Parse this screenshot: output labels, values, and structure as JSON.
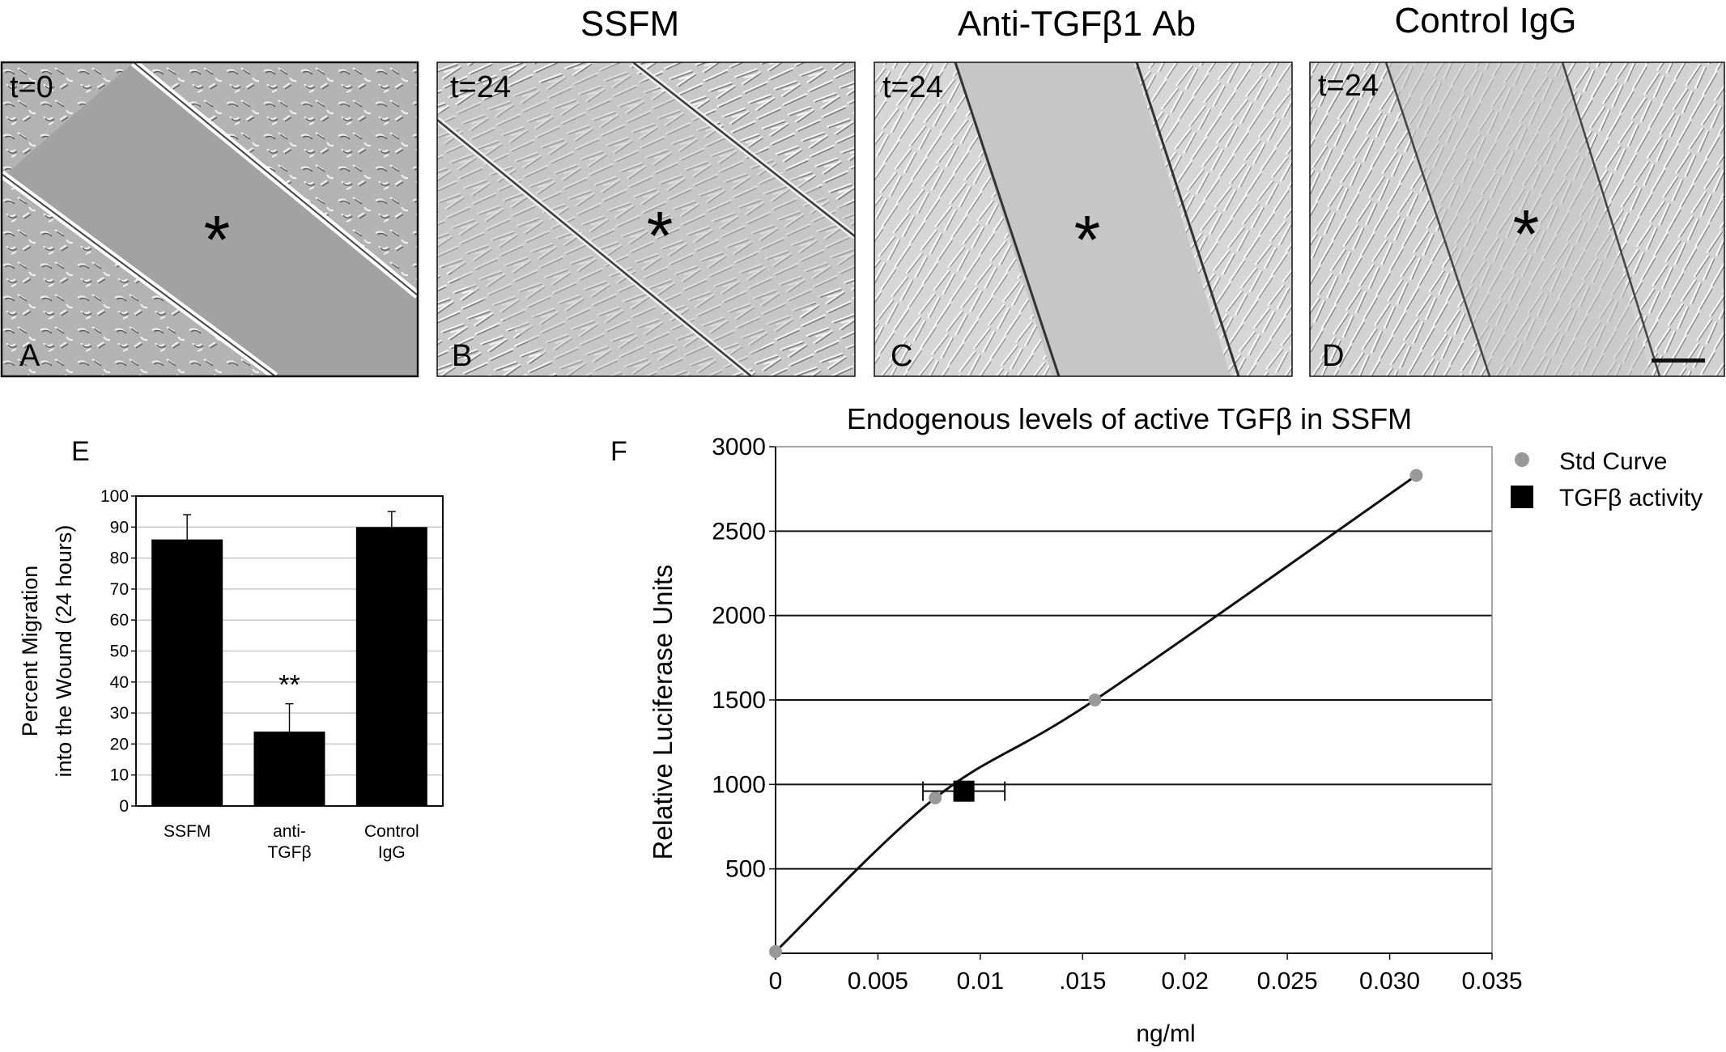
{
  "figure": {
    "column_titles": [
      "SSFM",
      "Anti-TGFβ1 Ab",
      "Control IgG"
    ],
    "panels": [
      {
        "letter": "A",
        "time_label": "t=0",
        "wound_marker": "*"
      },
      {
        "letter": "B",
        "time_label": "t=24",
        "wound_marker": "*"
      },
      {
        "letter": "C",
        "time_label": "t=24",
        "wound_marker": "*"
      },
      {
        "letter": "D",
        "time_label": "t=24",
        "wound_marker": "*"
      }
    ],
    "panel_e_letter": "E",
    "panel_f_letter": "F"
  },
  "chart_data": [
    {
      "type": "bar",
      "panel": "E",
      "title": "",
      "ylabel_lines": [
        "Percent Migration",
        "into the Wound (24 hours)"
      ],
      "ylim": [
        0,
        100
      ],
      "yticks": [
        "0",
        "10",
        "20",
        "30",
        "40",
        "50",
        "60",
        "70",
        "80",
        "90",
        "100"
      ],
      "categories": [
        [
          "SSFM"
        ],
        [
          "anti-",
          "TGFβ"
        ],
        [
          "Control",
          "IgG"
        ]
      ],
      "values": [
        86,
        24,
        90
      ],
      "errors": [
        8,
        9,
        5
      ],
      "annotations": [
        {
          "category_index": 1,
          "text": "**"
        }
      ],
      "bar_color": "#000000",
      "grid": true
    },
    {
      "type": "line",
      "panel": "F",
      "title": "Endogenous levels of active TGFβ in SSFM",
      "xlabel": "ng/ml",
      "ylabel": "Relative Luciferase Units",
      "xlim": [
        0,
        0.035
      ],
      "ylim": [
        0,
        3000
      ],
      "xticks": [
        {
          "value": 0,
          "label": "0"
        },
        {
          "value": 0.005,
          "label": "0.005"
        },
        {
          "value": 0.01,
          "label": "0.01"
        },
        {
          "value": 0.015,
          "label": ".015"
        },
        {
          "value": 0.02,
          "label": "0.02"
        },
        {
          "value": 0.025,
          "label": "0.025"
        },
        {
          "value": 0.03,
          "label": "0.030"
        },
        {
          "value": 0.035,
          "label": "0.035"
        }
      ],
      "yticks": [
        {
          "value": 500,
          "label": "500"
        },
        {
          "value": 1000,
          "label": "1000"
        },
        {
          "value": 1500,
          "label": "1500"
        },
        {
          "value": 2000,
          "label": "2000"
        },
        {
          "value": 2500,
          "label": "2500"
        },
        {
          "value": 3000,
          "label": "3000"
        }
      ],
      "grid": true,
      "legend_position": "top-right",
      "series": [
        {
          "name": "Std Curve",
          "marker": "circle",
          "color": "#999999",
          "x": [
            0,
            0.0078,
            0.0156,
            0.0313
          ],
          "y": [
            10,
            920,
            1500,
            2830
          ]
        },
        {
          "name": "TGFβ activity",
          "marker": "square",
          "color": "#000000",
          "x": [
            0.0092
          ],
          "y": [
            960
          ],
          "x_error": [
            0.002
          ]
        }
      ]
    }
  ]
}
